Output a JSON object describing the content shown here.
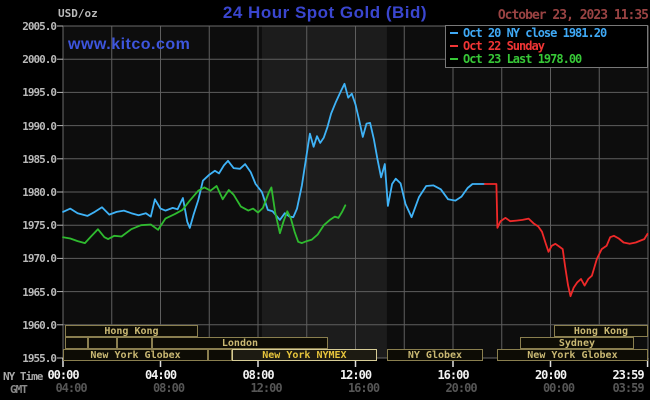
{
  "header": {
    "units_label": "USD/oz",
    "title": "24 Hour Spot Gold (Bid)",
    "datetime": "October 23, 2023 11:35",
    "watermark": "www.kitco.com"
  },
  "legend": {
    "items": [
      {
        "label": "Oct 20 NY close 1981.20",
        "color": "#3fa9f5"
      },
      {
        "label": "Oct 22 Sunday",
        "color": "#f03535"
      },
      {
        "label": "Oct 23 Last 1978.00",
        "color": "#37c837"
      }
    ]
  },
  "axes": {
    "y_tick_labels": [
      "2005.0",
      "2000.0",
      "1995.0",
      "1990.0",
      "1985.0",
      "1980.0",
      "1975.0",
      "1970.0",
      "1965.0",
      "1960.0",
      "1955.0"
    ],
    "x_row_ny_label": "NY Time",
    "x_row_gmt_label": "GMT",
    "x_ticks": [
      {
        "t": 0,
        "ny": "00:00",
        "gmt": "04:00"
      },
      {
        "t": 4,
        "ny": "04:00",
        "gmt": "08:00"
      },
      {
        "t": 8,
        "ny": "08:00",
        "gmt": "12:00"
      },
      {
        "t": 12,
        "ny": "12:00",
        "gmt": "16:00"
      },
      {
        "t": 16,
        "ny": "16:00",
        "gmt": "20:00"
      },
      {
        "t": 20,
        "ny": "20:00",
        "gmt": "00:00"
      },
      {
        "t": 23.983,
        "ny": "23:59",
        "gmt": "03:59"
      }
    ]
  },
  "sessions": [
    {
      "row": 0,
      "t0": 0.08,
      "t1": 5.54,
      "label": "Hong Kong",
      "bright": false
    },
    {
      "row": 0,
      "t0": 20.14,
      "t1": 24,
      "label": "Hong Kong",
      "bright": false
    },
    {
      "row": 1,
      "t0": 0.08,
      "t1": 1.03,
      "label": "",
      "bright": false
    },
    {
      "row": 1,
      "t0": 1.03,
      "t1": 2.2,
      "label": "",
      "bright": false
    },
    {
      "row": 1,
      "t0": 2.2,
      "t1": 3.65,
      "label": "",
      "bright": false
    },
    {
      "row": 1,
      "t0": 3.65,
      "t1": 10.87,
      "label": "London",
      "bright": false
    },
    {
      "row": 1,
      "t0": 18.75,
      "t1": 23.42,
      "label": "Sydney",
      "bright": false
    },
    {
      "row": 2,
      "t0": 0,
      "t1": 5.95,
      "label": "New York Globex",
      "bright": false
    },
    {
      "row": 2,
      "t0": 5.95,
      "t1": 6.93,
      "label": "",
      "bright": false
    },
    {
      "row": 2,
      "t0": 6.93,
      "t1": 12.88,
      "label": "New York NYMEX",
      "bright": true
    },
    {
      "row": 2,
      "t0": 13.29,
      "t1": 17.23,
      "label": "NY Globex",
      "bright": false
    },
    {
      "row": 2,
      "t0": 17.8,
      "t1": 24,
      "label": "New York Globex",
      "bright": false
    }
  ],
  "colors": {
    "plot_bg": "#0d0d0d",
    "highlight_band": "#1c1c1c",
    "grid": "#5e5e5e",
    "border": "#6a6a6a",
    "y_tick": "#b9b9b9",
    "x_tick": "#e0e0e0"
  },
  "chart_data": {
    "type": "line",
    "title": "24 Hour Spot Gold (Bid)",
    "xlabel": "Time (NY Time / GMT)",
    "ylabel": "USD/oz",
    "xlim_hours": [
      0,
      24
    ],
    "ylim": [
      1955,
      2005
    ],
    "y_grid_step": 5,
    "x_grid_step_hours": 2,
    "grid": true,
    "legend_position": "top-right",
    "highlight_band_hours": [
      8.16,
      13.29
    ],
    "series": [
      {
        "name": "Oct 20 NY close 1981.20",
        "color": "#3fb3f7",
        "points": [
          [
            0,
            1977.0
          ],
          [
            0.3,
            1977.5
          ],
          [
            0.6,
            1976.8
          ],
          [
            1.0,
            1976.4
          ],
          [
            1.3,
            1977.0
          ],
          [
            1.6,
            1977.7
          ],
          [
            1.9,
            1976.6
          ],
          [
            2.2,
            1977.0
          ],
          [
            2.5,
            1977.2
          ],
          [
            2.8,
            1976.8
          ],
          [
            3.1,
            1976.5
          ],
          [
            3.4,
            1976.8
          ],
          [
            3.6,
            1976.3
          ],
          [
            3.77,
            1978.9
          ],
          [
            4.0,
            1977.5
          ],
          [
            4.2,
            1977.2
          ],
          [
            4.5,
            1977.6
          ],
          [
            4.7,
            1977.4
          ],
          [
            4.92,
            1979.1
          ],
          [
            5.1,
            1975.5
          ],
          [
            5.2,
            1974.6
          ],
          [
            5.35,
            1976.5
          ],
          [
            5.55,
            1978.8
          ],
          [
            5.74,
            1981.7
          ],
          [
            6.0,
            1982.6
          ],
          [
            6.23,
            1983.2
          ],
          [
            6.4,
            1982.8
          ],
          [
            6.6,
            1984.0
          ],
          [
            6.77,
            1984.7
          ],
          [
            7.0,
            1983.6
          ],
          [
            7.26,
            1983.5
          ],
          [
            7.47,
            1984.2
          ],
          [
            7.7,
            1983.0
          ],
          [
            7.9,
            1981.2
          ],
          [
            8.16,
            1980.0
          ],
          [
            8.4,
            1977.3
          ],
          [
            8.6,
            1977.1
          ],
          [
            8.9,
            1975.8
          ],
          [
            9.1,
            1976.8
          ],
          [
            9.3,
            1976.3
          ],
          [
            9.45,
            1976.2
          ],
          [
            9.6,
            1977.5
          ],
          [
            9.8,
            1981.0
          ],
          [
            10.0,
            1985.8
          ],
          [
            10.13,
            1988.8
          ],
          [
            10.28,
            1986.8
          ],
          [
            10.42,
            1988.4
          ],
          [
            10.55,
            1987.4
          ],
          [
            10.7,
            1988.2
          ],
          [
            10.85,
            1989.8
          ],
          [
            11.0,
            1991.8
          ],
          [
            11.2,
            1993.6
          ],
          [
            11.4,
            1995.2
          ],
          [
            11.55,
            1996.3
          ],
          [
            11.7,
            1994.2
          ],
          [
            11.85,
            1994.8
          ],
          [
            12.0,
            1993.2
          ],
          [
            12.15,
            1990.8
          ],
          [
            12.3,
            1988.3
          ],
          [
            12.45,
            1990.3
          ],
          [
            12.6,
            1990.4
          ],
          [
            12.75,
            1988.0
          ],
          [
            12.9,
            1985.0
          ],
          [
            13.05,
            1982.2
          ],
          [
            13.2,
            1984.2
          ],
          [
            13.33,
            1977.9
          ],
          [
            13.5,
            1981.2
          ],
          [
            13.65,
            1982.0
          ],
          [
            13.85,
            1981.3
          ],
          [
            14.05,
            1978.2
          ],
          [
            14.3,
            1976.2
          ],
          [
            14.6,
            1979.2
          ],
          [
            14.9,
            1980.9
          ],
          [
            15.2,
            1981.0
          ],
          [
            15.5,
            1980.4
          ],
          [
            15.8,
            1978.9
          ],
          [
            16.1,
            1978.7
          ],
          [
            16.35,
            1979.3
          ],
          [
            16.6,
            1980.6
          ],
          [
            16.8,
            1981.2
          ],
          [
            17.3,
            1981.2
          ]
        ]
      },
      {
        "name": "Oct 22 Sunday",
        "color": "#ef2929",
        "points": [
          [
            17.3,
            1981.2
          ],
          [
            17.78,
            1981.2
          ],
          [
            17.82,
            1974.6
          ],
          [
            17.95,
            1975.6
          ],
          [
            18.15,
            1976.1
          ],
          [
            18.35,
            1975.6
          ],
          [
            18.6,
            1975.7
          ],
          [
            18.85,
            1975.8
          ],
          [
            19.1,
            1976.0
          ],
          [
            19.3,
            1975.3
          ],
          [
            19.5,
            1974.8
          ],
          [
            19.65,
            1974.0
          ],
          [
            19.8,
            1972.3
          ],
          [
            19.92,
            1971.0
          ],
          [
            20.05,
            1971.9
          ],
          [
            20.2,
            1972.2
          ],
          [
            20.35,
            1971.8
          ],
          [
            20.5,
            1971.4
          ],
          [
            20.6,
            1968.8
          ],
          [
            20.72,
            1966.0
          ],
          [
            20.82,
            1964.3
          ],
          [
            20.95,
            1965.6
          ],
          [
            21.1,
            1966.4
          ],
          [
            21.25,
            1966.9
          ],
          [
            21.4,
            1965.9
          ],
          [
            21.55,
            1966.9
          ],
          [
            21.7,
            1967.4
          ],
          [
            21.9,
            1969.9
          ],
          [
            22.1,
            1971.4
          ],
          [
            22.3,
            1971.9
          ],
          [
            22.45,
            1973.2
          ],
          [
            22.6,
            1973.4
          ],
          [
            22.8,
            1973.0
          ],
          [
            23.0,
            1972.4
          ],
          [
            23.25,
            1972.2
          ],
          [
            23.5,
            1972.4
          ],
          [
            23.7,
            1972.7
          ],
          [
            23.85,
            1972.9
          ],
          [
            23.98,
            1973.7
          ]
        ]
      },
      {
        "name": "Oct 23 Last 1978.00",
        "color": "#2fbb2f",
        "points": [
          [
            0,
            1973.2
          ],
          [
            0.3,
            1973.0
          ],
          [
            0.6,
            1972.6
          ],
          [
            0.9,
            1972.3
          ],
          [
            1.15,
            1973.3
          ],
          [
            1.43,
            1974.4
          ],
          [
            1.7,
            1973.2
          ],
          [
            1.85,
            1972.9
          ],
          [
            2.1,
            1973.4
          ],
          [
            2.4,
            1973.3
          ],
          [
            2.8,
            1974.4
          ],
          [
            3.2,
            1975.0
          ],
          [
            3.6,
            1975.1
          ],
          [
            3.9,
            1974.3
          ],
          [
            4.2,
            1976.0
          ],
          [
            4.6,
            1976.7
          ],
          [
            4.9,
            1977.3
          ],
          [
            5.2,
            1978.7
          ],
          [
            5.55,
            1980.2
          ],
          [
            5.8,
            1980.7
          ],
          [
            6.05,
            1980.2
          ],
          [
            6.3,
            1980.9
          ],
          [
            6.55,
            1978.9
          ],
          [
            6.8,
            1980.3
          ],
          [
            7.0,
            1979.6
          ],
          [
            7.3,
            1977.8
          ],
          [
            7.6,
            1977.2
          ],
          [
            7.8,
            1977.5
          ],
          [
            8.0,
            1976.9
          ],
          [
            8.2,
            1977.6
          ],
          [
            8.45,
            1980.0
          ],
          [
            8.55,
            1980.7
          ],
          [
            8.7,
            1977.0
          ],
          [
            8.9,
            1973.8
          ],
          [
            9.05,
            1975.6
          ],
          [
            9.2,
            1977.1
          ],
          [
            9.35,
            1976.0
          ],
          [
            9.5,
            1974.0
          ],
          [
            9.65,
            1972.5
          ],
          [
            9.8,
            1972.3
          ],
          [
            10.0,
            1972.6
          ],
          [
            10.2,
            1972.8
          ],
          [
            10.45,
            1973.6
          ],
          [
            10.7,
            1975.0
          ],
          [
            10.95,
            1975.8
          ],
          [
            11.15,
            1976.3
          ],
          [
            11.3,
            1976.1
          ],
          [
            11.45,
            1977.0
          ],
          [
            11.58,
            1978.0
          ]
        ]
      }
    ]
  }
}
